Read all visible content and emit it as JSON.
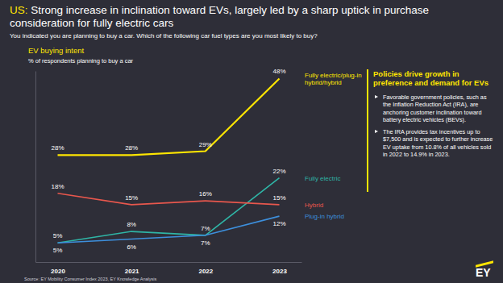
{
  "chart_data": {
    "type": "line",
    "title": "US: Strong increase in inclination toward EVs, largely led by a sharp uptick in purchase consideration for fully electric cars",
    "subtitle": "You indicated you are planning to buy a car. Which of the following car fuel types are you most likely to buy?",
    "chart_title": "EV buying intent",
    "ylabel": "% of respondents planning to buy a car",
    "categories": [
      "2020",
      "2021",
      "2022",
      "2023"
    ],
    "series": [
      {
        "name": "Fully electric/plug-in hybrid/hybrid",
        "color": "#ffe600",
        "values": [
          28,
          28,
          29,
          48
        ],
        "value_labels": [
          "28%",
          "28%",
          "29%",
          "48%"
        ]
      },
      {
        "name": "Fully electric",
        "color": "#2fb5a6",
        "values": [
          5,
          8,
          7,
          22
        ],
        "value_labels": [
          "5%",
          "8%",
          "7%",
          "22%"
        ]
      },
      {
        "name": "Hybrid",
        "color": "#e8574d",
        "values": [
          18,
          15,
          16,
          15
        ],
        "value_labels": [
          "18%",
          "15%",
          "16%",
          "15%"
        ]
      },
      {
        "name": "Plug-in hybrid",
        "color": "#3d8fdc",
        "values": [
          5,
          6,
          7,
          12
        ],
        "value_labels": [
          "5%",
          "6%",
          "7%",
          "12%"
        ]
      }
    ],
    "ylim": [
      0,
      50
    ],
    "tick_labels": "x",
    "data_labels": true,
    "side_panel": {
      "heading": "Policies drive growth in preference and demand for EVs",
      "bullets": [
        "Favorable government policies, such as the Inflation Reduction Act (IRA), are anchoring customer inclination toward battery electric vehicles (BEVs).",
        "The IRA provides tax incentives up to $7,500  and is expected to further increase EV uptake from 10.8% of all vehicles sold in 2022 to 14.9% in 2023."
      ]
    },
    "source": "Source: EY Mobility Consumer Index 2023, EY Knowledge Analysis",
    "logo": "EY"
  }
}
